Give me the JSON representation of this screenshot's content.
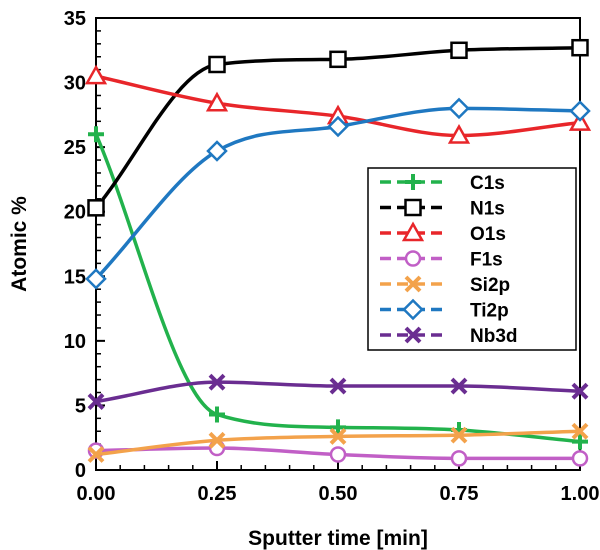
{
  "chart_data": {
    "type": "line",
    "title": "",
    "xlabel": "Sputter time [min]",
    "ylabel": "Atomic %",
    "xlim": [
      0,
      1
    ],
    "ylim": [
      0,
      35
    ],
    "x_ticks": [
      "0.00",
      "0.25",
      "0.50",
      "0.75",
      "1.00"
    ],
    "x_tick_values": [
      0,
      0.25,
      0.5,
      0.75,
      1.0
    ],
    "y_ticks": [
      "0",
      "5",
      "10",
      "15",
      "20",
      "25",
      "30",
      "35"
    ],
    "y_tick_values": [
      0,
      5,
      10,
      15,
      20,
      25,
      30,
      35
    ],
    "grid": false,
    "legend_position": "center-right",
    "line_style": "smoothed",
    "x": [
      0,
      0.25,
      0.5,
      0.75,
      1.0
    ],
    "series": [
      {
        "name": "C1s",
        "color": "#22b24c",
        "marker": "plus",
        "values": [
          26.0,
          4.3,
          3.3,
          3.1,
          2.2
        ]
      },
      {
        "name": "N1s",
        "color": "#000000",
        "marker": "square",
        "values": [
          20.3,
          31.4,
          31.8,
          32.5,
          32.7
        ]
      },
      {
        "name": "O1s",
        "color": "#e8262a",
        "marker": "triangle",
        "values": [
          30.5,
          28.4,
          27.4,
          25.9,
          26.9
        ]
      },
      {
        "name": "F1s",
        "color": "#c15fc6",
        "marker": "circle",
        "values": [
          1.5,
          1.7,
          1.2,
          0.9,
          0.9
        ]
      },
      {
        "name": "Si2p",
        "color": "#f3a24b",
        "marker": "x",
        "values": [
          1.2,
          2.3,
          2.6,
          2.7,
          3.0
        ]
      },
      {
        "name": "Ti2p",
        "color": "#1f78c1",
        "marker": "diamond",
        "values": [
          14.8,
          24.7,
          26.6,
          28.0,
          27.8
        ]
      },
      {
        "name": "Nb3d",
        "color": "#6a2d91",
        "marker": "x",
        "values": [
          5.3,
          6.8,
          6.5,
          6.5,
          6.1
        ]
      }
    ]
  }
}
